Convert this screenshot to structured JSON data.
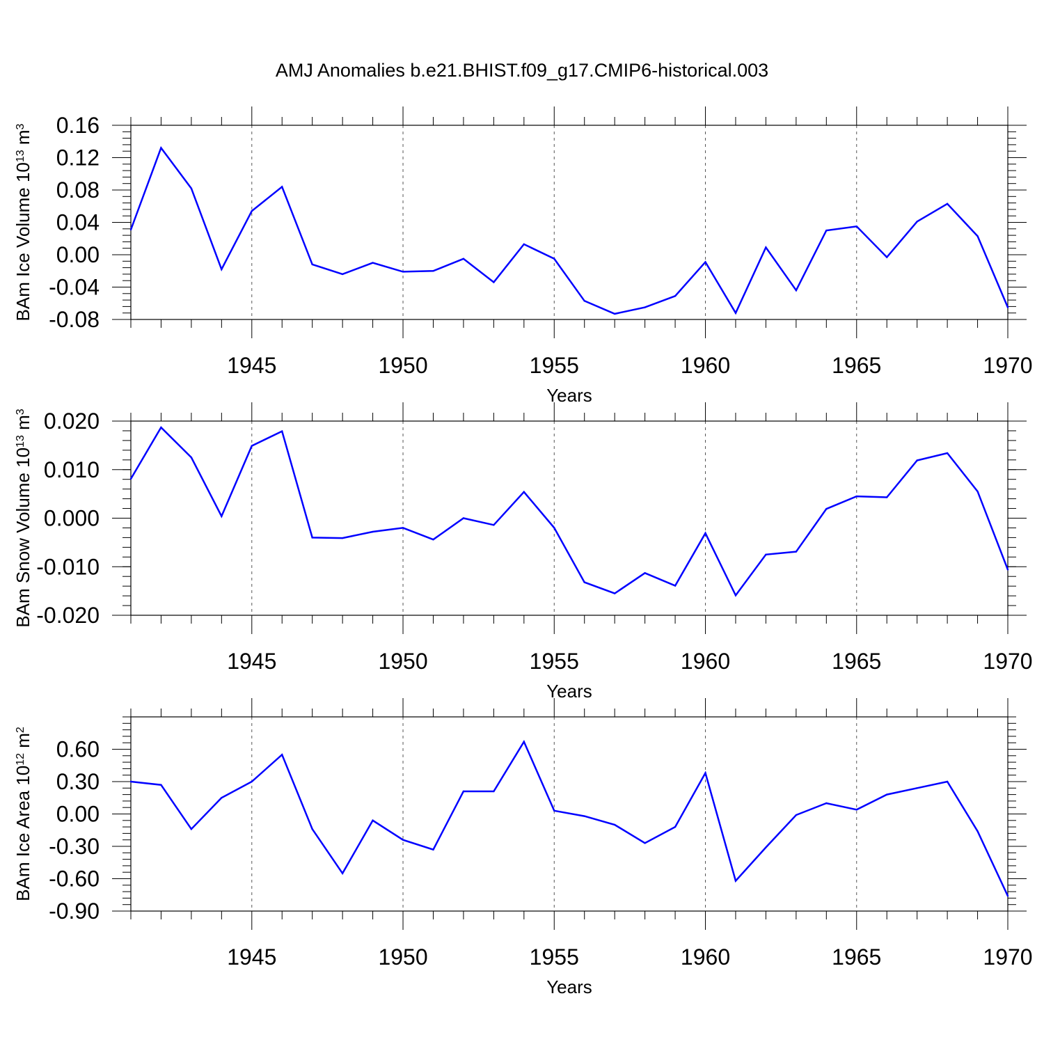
{
  "title": "AMJ Anomalies b.e21.BHIST.f09_g17.CMIP6-historical.003",
  "colors": {
    "line": "#0000ff",
    "axis": "#000000",
    "grid": "#555555"
  },
  "chart_data": [
    {
      "type": "line",
      "title": "",
      "xlabel": "Years",
      "ylabel": "BAm Ice Volume 10",
      "ylabel_exp": "13",
      "ylabel_unit": " m",
      "ylabel_unit_exp": "3",
      "xlim": [
        1941,
        1970
      ],
      "ylim": [
        -0.08,
        0.16
      ],
      "x_ticks": [
        1945,
        1950,
        1955,
        1960,
        1965,
        1970
      ],
      "y_ticks": [
        "0.16",
        "0.12",
        "0.08",
        "0.04",
        "0.00",
        "-0.04",
        "-0.08"
      ],
      "y_tick_values": [
        0.16,
        0.12,
        0.08,
        0.04,
        0.0,
        -0.04,
        -0.08
      ],
      "y_minor_step": 0.008,
      "grid": "x-dashed",
      "x": [
        1941,
        1942,
        1943,
        1944,
        1945,
        1946,
        1947,
        1948,
        1949,
        1950,
        1951,
        1952,
        1953,
        1954,
        1955,
        1956,
        1957,
        1958,
        1959,
        1960,
        1961,
        1962,
        1963,
        1964,
        1965,
        1966,
        1967,
        1968,
        1969,
        1970
      ],
      "values": [
        0.031,
        0.132,
        0.082,
        -0.018,
        0.054,
        0.084,
        -0.012,
        -0.024,
        -0.01,
        -0.021,
        -0.02,
        -0.005,
        -0.034,
        0.013,
        -0.005,
        -0.057,
        -0.073,
        -0.065,
        -0.051,
        -0.009,
        -0.072,
        0.009,
        -0.044,
        0.03,
        0.035,
        -0.003,
        0.041,
        0.063,
        0.023,
        -0.065
      ]
    },
    {
      "type": "line",
      "title": "",
      "xlabel": "Years",
      "ylabel": "BAm Snow Volume 10",
      "ylabel_exp": "13",
      "ylabel_unit": " m",
      "ylabel_unit_exp": "3",
      "xlim": [
        1941,
        1970
      ],
      "ylim": [
        -0.02,
        0.02
      ],
      "x_ticks": [
        1945,
        1950,
        1955,
        1960,
        1965,
        1970
      ],
      "y_ticks": [
        "0.020",
        "0.010",
        "0.000",
        "-0.010",
        "-0.020"
      ],
      "y_tick_values": [
        0.02,
        0.01,
        0.0,
        -0.01,
        -0.02
      ],
      "y_minor_step": 0.002,
      "grid": "x-dashed",
      "x": [
        1941,
        1942,
        1943,
        1944,
        1945,
        1946,
        1947,
        1948,
        1949,
        1950,
        1951,
        1952,
        1953,
        1954,
        1955,
        1956,
        1957,
        1958,
        1959,
        1960,
        1961,
        1962,
        1963,
        1964,
        1965,
        1966,
        1967,
        1968,
        1969,
        1970
      ],
      "values": [
        0.0081,
        0.0187,
        0.0125,
        0.0004,
        0.0149,
        0.0179,
        -0.004,
        -0.0041,
        -0.0028,
        -0.002,
        -0.0044,
        0.0,
        -0.0014,
        0.0054,
        -0.002,
        -0.0132,
        -0.0155,
        -0.0113,
        -0.0139,
        -0.0031,
        -0.0159,
        -0.0075,
        -0.0069,
        0.0019,
        0.0045,
        0.0043,
        0.0119,
        0.0134,
        0.0055,
        -0.0106
      ]
    },
    {
      "type": "line",
      "title": "",
      "xlabel": "Years",
      "ylabel": "BAm Ice Area 10",
      "ylabel_exp": "12",
      "ylabel_unit": " m",
      "ylabel_unit_exp": "2",
      "xlim": [
        1941,
        1970
      ],
      "ylim": [
        -0.9,
        0.9
      ],
      "x_ticks": [
        1945,
        1950,
        1955,
        1960,
        1965,
        1970
      ],
      "y_ticks": [
        "0.60",
        "0.30",
        "0.00",
        "-0.30",
        "-0.60",
        "-0.90"
      ],
      "y_tick_values": [
        0.6,
        0.3,
        0.0,
        -0.3,
        -0.6,
        -0.9
      ],
      "y_minor_step": 0.06,
      "grid": "x-dashed",
      "x": [
        1941,
        1942,
        1943,
        1944,
        1945,
        1946,
        1947,
        1948,
        1949,
        1950,
        1951,
        1952,
        1953,
        1954,
        1955,
        1956,
        1957,
        1958,
        1959,
        1960,
        1961,
        1962,
        1963,
        1964,
        1965,
        1966,
        1967,
        1968,
        1969,
        1970
      ],
      "values": [
        0.3,
        0.27,
        -0.14,
        0.15,
        0.3,
        0.55,
        -0.14,
        -0.55,
        -0.06,
        -0.24,
        -0.33,
        0.21,
        0.21,
        0.67,
        0.03,
        -0.02,
        -0.1,
        -0.27,
        -0.12,
        0.38,
        -0.62,
        -0.31,
        -0.01,
        0.1,
        0.04,
        0.18,
        0.24,
        0.3,
        -0.16,
        -0.76
      ]
    }
  ]
}
